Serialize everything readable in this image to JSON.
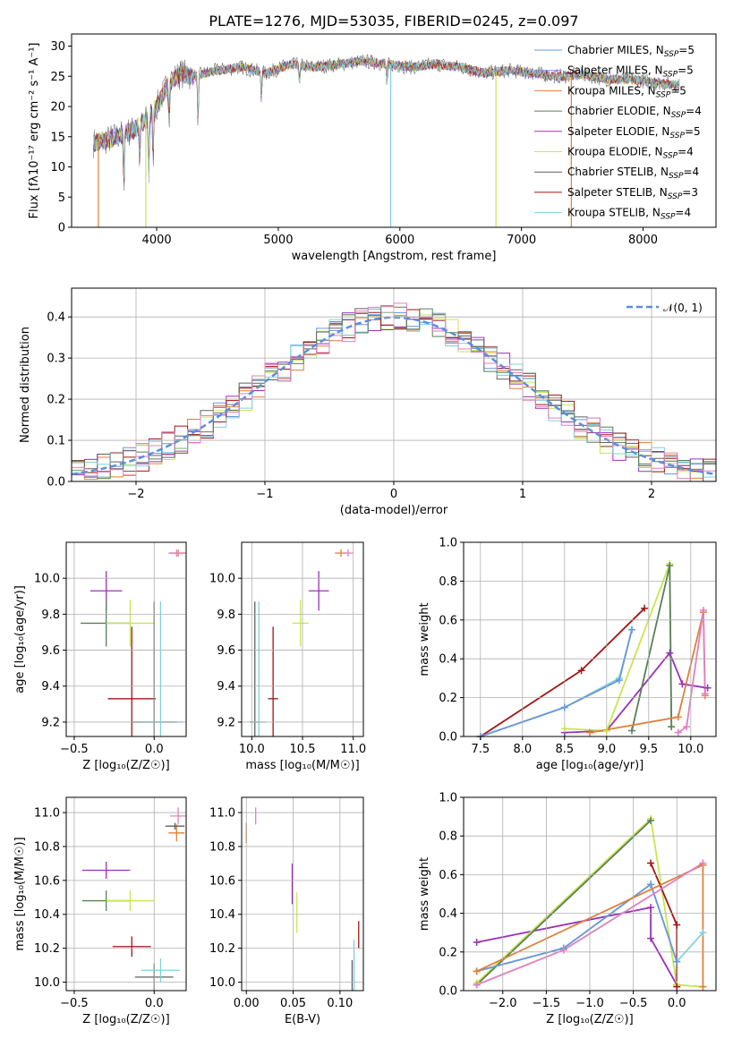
{
  "colors": {
    "chabrier_miles": "#6a97d9",
    "salpeter_miles": "#8a8af0",
    "kroupa_miles": "#e07f3a",
    "chabrier_elodie": "#5a7f5a",
    "salpeter_elodie": "#9b30b8",
    "kroupa_elodie": "#c8e650",
    "chabrier_stelib": "#606060",
    "salpeter_stelib": "#a01616",
    "kroupa_stelib": "#80d0e0",
    "pink": "#e080c0",
    "normal": "#5a8fdc"
  },
  "chart_data": [
    {
      "id": "spectrum",
      "type": "line",
      "title": "PLATE=1276, MJD=53035, FIBERID=0245, z=0.097",
      "xlabel": "wavelength [Angstrom, rest frame]",
      "ylabel": "Flux [fλ10⁻¹⁷ erg cm⁻² s⁻¹ A⁻¹]",
      "xlim": [
        3300,
        8600
      ],
      "ylim": [
        0,
        32
      ],
      "xticks": [
        "4000",
        "5000",
        "6000",
        "7000",
        "8000"
      ],
      "yticks": [
        "0",
        "5",
        "10",
        "15",
        "20",
        "25",
        "30"
      ],
      "legend_position": "top-right",
      "legend": [
        {
          "name": "Chabrier MILES, NSSP=5",
          "color": "#6a97d9"
        },
        {
          "name": "Salpeter MILES, NSSP=5",
          "color": "#8a8af0"
        },
        {
          "name": "Kroupa MILES, NSSP=5",
          "color": "#e07f3a"
        },
        {
          "name": "Chabrier ELODIE, NSSP=4",
          "color": "#5a7f5a"
        },
        {
          "name": "Salpeter ELODIE, NSSP=5",
          "color": "#9b30b8"
        },
        {
          "name": "Kroupa ELODIE, NSSP=4",
          "color": "#c8e650"
        },
        {
          "name": "Chabrier STELIB, NSSP=4",
          "color": "#606060"
        },
        {
          "name": "Salpeter STELIB, NSSP=3",
          "color": "#a01616"
        },
        {
          "name": "Kroupa STELIB, NSSP=4",
          "color": "#80d0e0"
        }
      ],
      "continuum_x": [
        3480,
        3600,
        3800,
        3900,
        4000,
        4100,
        4200,
        4300,
        4500,
        4700,
        4900,
        5100,
        5300,
        5500,
        5700,
        5900,
        6100,
        6300,
        6500,
        6700,
        6900,
        7100,
        7300,
        7500,
        7700,
        7900,
        8100,
        8300
      ],
      "continuum_y": [
        14,
        14.5,
        16,
        17.5,
        20,
        24,
        25.5,
        25,
        26,
        26.5,
        25.5,
        27,
        26.5,
        27,
        27.5,
        27,
        26.5,
        27,
        26.5,
        25.5,
        26,
        25.5,
        25,
        25.3,
        24.5,
        24.5,
        24,
        23.5
      ],
      "absorption_lines": [
        {
          "x": 3730,
          "depth": 8
        },
        {
          "x": 3860,
          "depth": 6
        },
        {
          "x": 3935,
          "depth": 10
        },
        {
          "x": 3970,
          "depth": 8
        },
        {
          "x": 4102,
          "depth": 6
        },
        {
          "x": 4340,
          "depth": 8
        },
        {
          "x": 4861,
          "depth": 4
        },
        {
          "x": 5175,
          "depth": 3
        },
        {
          "x": 5893,
          "depth": 3
        }
      ],
      "gap_drops": [
        {
          "x": 3520,
          "color": "#e07f3a"
        },
        {
          "x": 3910,
          "color": "#c8e650"
        },
        {
          "x": 5925,
          "color": "#80d0e0"
        },
        {
          "x": 6790,
          "color": "#c8e650"
        },
        {
          "x": 7410,
          "color": "#e07f3a"
        }
      ]
    },
    {
      "id": "residuals",
      "type": "bar",
      "xlabel": "(data-model)/error",
      "ylabel": "Normed distribution",
      "xlim": [
        -2.5,
        2.5
      ],
      "ylim": [
        0,
        0.47
      ],
      "xticks": [
        -2,
        -1,
        0,
        1,
        2
      ],
      "yticks": [
        "0.0",
        "0.1",
        "0.2",
        "0.3",
        "0.4"
      ],
      "grid": true,
      "legend": [
        {
          "name": "𝒩(0, 1)",
          "style": "dashed",
          "color": "#5a8fdc"
        }
      ],
      "legend_position": "top-right",
      "bin_width": 0.1
    },
    {
      "id": "age_vs_Z",
      "type": "scatter",
      "xlabel": "Z [log₁₀(Z/Z☉)]",
      "ylabel": "age  [log₁₀(age/yr)]",
      "xlim": [
        -0.55,
        0.2
      ],
      "ylim": [
        9.12,
        10.2
      ],
      "xticks": [
        "-0.5",
        "0.0"
      ],
      "yticks": [
        "9.2",
        "9.4",
        "9.6",
        "9.8",
        "10.0"
      ],
      "grid": true,
      "points": [
        {
          "x": -0.3,
          "y": 9.93,
          "xerr": 0.1,
          "yerr": 0.11,
          "color": "#9b30b8"
        },
        {
          "x": -0.3,
          "y": 9.75,
          "xerr": 0.16,
          "yerr": 0.13,
          "color": "#5a7f5a"
        },
        {
          "x": -0.15,
          "y": 9.75,
          "xerr": 0.15,
          "yerr": 0.13,
          "color": "#c8e650"
        },
        {
          "x": -0.14,
          "y": 9.33,
          "xerr": 0.15,
          "yerr": 0.4,
          "color": "#a01616"
        },
        {
          "x": 0.0,
          "y": 9.2,
          "xerr": 0.14,
          "yerr": 0.67,
          "color": "#606060"
        },
        {
          "x": 0.04,
          "y": 9.2,
          "xerr": 0.14,
          "yerr": 0.67,
          "color": "#80d0e0"
        },
        {
          "x": 0.15,
          "y": 10.14,
          "xerr": 0.05,
          "yerr": 0.02,
          "color": "#e07f3a"
        },
        {
          "x": 0.14,
          "y": 10.14,
          "xerr": 0.05,
          "yerr": 0.02,
          "color": "#e080c0"
        }
      ]
    },
    {
      "id": "age_vs_mass",
      "type": "scatter",
      "xlabel": "mass [log₁₀(M/M☉)]",
      "xlim": [
        9.9,
        11.1
      ],
      "ylim": [
        9.12,
        10.2
      ],
      "xticks": [
        "10.0",
        "10.5",
        "11.0"
      ],
      "yticks": [
        "9.2",
        "9.4",
        "9.6",
        "9.8",
        "10.0"
      ],
      "grid": true,
      "points": [
        {
          "x": 10.66,
          "y": 9.93,
          "xerr": 0.1,
          "yerr": 0.11,
          "color": "#9b30b8"
        },
        {
          "x": 10.48,
          "y": 9.75,
          "xerr": 0.08,
          "yerr": 0.13,
          "color": "#c8e650"
        },
        {
          "x": 10.21,
          "y": 9.33,
          "xerr": 0.05,
          "yerr": 0.4,
          "color": "#a01616"
        },
        {
          "x": 10.03,
          "y": 9.2,
          "xerr": 0.05,
          "yerr": 0.67,
          "color": "#606060"
        },
        {
          "x": 10.07,
          "y": 9.2,
          "xerr": 0.07,
          "yerr": 0.67,
          "color": "#80d0e0"
        },
        {
          "x": 10.88,
          "y": 10.14,
          "xerr": 0.06,
          "yerr": 0.02,
          "color": "#e07f3a"
        },
        {
          "x": 10.95,
          "y": 10.14,
          "xerr": 0.05,
          "yerr": 0.02,
          "color": "#e080c0"
        }
      ]
    },
    {
      "id": "weight_vs_age",
      "type": "line",
      "xlabel": "age  [log₁₀(age/yr)]",
      "ylabel": "mass weight",
      "xlim": [
        7.3,
        10.3
      ],
      "ylim": [
        0,
        1.0
      ],
      "xticks": [
        "7.5",
        "8.0",
        "8.5",
        "9.0",
        "9.5",
        "10.0"
      ],
      "yticks": [
        "0.0",
        "0.2",
        "0.4",
        "0.6",
        "0.8",
        "1.0"
      ],
      "grid": true,
      "series": [
        {
          "color": "#a01616",
          "x": [
            7.5,
            8.7,
            9.45
          ],
          "y": [
            0.0,
            0.34,
            0.66
          ]
        },
        {
          "color": "#80d0e0",
          "x": [
            7.5,
            8.5,
            9.15,
            9.3
          ],
          "y": [
            0.0,
            0.15,
            0.3,
            0.55
          ]
        },
        {
          "color": "#6a97d9",
          "x": [
            7.5,
            8.5,
            9.15,
            9.3
          ],
          "y": [
            0.0,
            0.15,
            0.29,
            0.55
          ]
        },
        {
          "color": "#9b30b8",
          "x": [
            8.5,
            9.0,
            9.75,
            9.9,
            10.2
          ],
          "y": [
            0.02,
            0.03,
            0.43,
            0.27,
            0.25
          ]
        },
        {
          "color": "#c8e650",
          "x": [
            8.5,
            9.0,
            9.75,
            9.77
          ],
          "y": [
            0.04,
            0.03,
            0.89,
            0.05
          ]
        },
        {
          "color": "#5a7f5a",
          "x": [
            9.3,
            9.75,
            9.77
          ],
          "y": [
            0.03,
            0.88,
            0.05
          ]
        },
        {
          "color": "#e07f3a",
          "x": [
            8.8,
            9.85,
            10.15,
            10.17
          ],
          "y": [
            0.02,
            0.1,
            0.64,
            0.21
          ]
        },
        {
          "color": "#e080c0",
          "x": [
            9.85,
            9.95,
            10.15,
            10.17
          ],
          "y": [
            0.02,
            0.05,
            0.65,
            0.22
          ]
        }
      ]
    },
    {
      "id": "mass_vs_Z",
      "type": "scatter",
      "xlabel": "Z [log₁₀(Z/Z☉)]",
      "ylabel": "mass [log₁₀(M/M☉)]",
      "xlim": [
        -0.55,
        0.2
      ],
      "ylim": [
        9.95,
        11.09
      ],
      "xticks": [
        "-0.5",
        "0.0"
      ],
      "yticks": [
        "10.0",
        "10.2",
        "10.4",
        "10.6",
        "10.8",
        "11.0"
      ],
      "grid": true,
      "points": [
        {
          "x": -0.3,
          "y": 10.66,
          "xerr": 0.15,
          "yerr": 0.05,
          "color": "#9b30b8"
        },
        {
          "x": -0.3,
          "y": 10.48,
          "xerr": 0.15,
          "yerr": 0.06,
          "color": "#5a7f5a"
        },
        {
          "x": -0.15,
          "y": 10.48,
          "xerr": 0.15,
          "yerr": 0.06,
          "color": "#c8e650"
        },
        {
          "x": -0.14,
          "y": 10.21,
          "xerr": 0.12,
          "yerr": 0.06,
          "color": "#a01616"
        },
        {
          "x": 0.0,
          "y": 10.03,
          "xerr": 0.12,
          "yerr": 0.08,
          "color": "#606060"
        },
        {
          "x": 0.04,
          "y": 10.07,
          "xerr": 0.12,
          "yerr": 0.07,
          "color": "#80d0e0"
        },
        {
          "x": 0.14,
          "y": 10.88,
          "xerr": 0.05,
          "yerr": 0.05,
          "color": "#e07f3a"
        },
        {
          "x": 0.15,
          "y": 10.98,
          "xerr": 0.05,
          "yerr": 0.05,
          "color": "#e080c0"
        },
        {
          "x": 0.13,
          "y": 10.92,
          "xerr": 0.06,
          "yerr": 0.02,
          "color": "#606060"
        }
      ]
    },
    {
      "id": "mass_vs_EBV",
      "type": "scatter",
      "xlabel": "E(B-V)",
      "xlim": [
        -0.005,
        0.125
      ],
      "ylim": [
        9.95,
        11.09
      ],
      "xticks": [
        "0.00",
        "0.05",
        "0.10"
      ],
      "yticks": [
        "10.0",
        "10.2",
        "10.4",
        "10.6",
        "10.8",
        "11.0"
      ],
      "grid": true,
      "points": [
        {
          "x": 0.0,
          "y": 10.88,
          "yerr": 0.06,
          "color": "#e07f3a"
        },
        {
          "x": 0.01,
          "y": 10.98,
          "yerr": 0.05,
          "color": "#e080c0"
        },
        {
          "x": 0.049,
          "y": 10.58,
          "yerr": 0.12,
          "color": "#9b30b8"
        },
        {
          "x": 0.054,
          "y": 10.41,
          "yerr": 0.12,
          "color": "#c8e650"
        },
        {
          "x": 0.113,
          "y": 10.03,
          "yerr": 0.1,
          "color": "#606060"
        },
        {
          "x": 0.115,
          "y": 10.1,
          "yerr": 0.15,
          "color": "#80d0e0"
        },
        {
          "x": 0.12,
          "y": 10.28,
          "yerr": 0.08,
          "color": "#a01616"
        }
      ]
    },
    {
      "id": "weight_vs_Z",
      "type": "line",
      "xlabel": "Z [log₁₀(Z/Z☉)]",
      "ylabel": "mass weight",
      "xlim": [
        -2.45,
        0.45
      ],
      "ylim": [
        0,
        1.0
      ],
      "xticks": [
        "-2.0",
        "-1.5",
        "-1.0",
        "-0.5",
        "0.0"
      ],
      "yticks": [
        "0.0",
        "0.2",
        "0.4",
        "0.6",
        "0.8",
        "1.0"
      ],
      "grid": true,
      "series": [
        {
          "color": "#9b30b8",
          "x": [
            -2.3,
            -0.3,
            -0.3,
            0.0
          ],
          "y": [
            0.25,
            0.43,
            0.27,
            0.03
          ]
        },
        {
          "color": "#c8e650",
          "x": [
            -2.3,
            -0.3,
            0.0,
            0.3
          ],
          "y": [
            0.04,
            0.89,
            0.03,
            0.02
          ]
        },
        {
          "color": "#5a7f5a",
          "x": [
            -2.3,
            -0.3
          ],
          "y": [
            0.03,
            0.88
          ]
        },
        {
          "color": "#a01616",
          "x": [
            -0.3,
            0.0,
            0.0
          ],
          "y": [
            0.66,
            0.34,
            0.02
          ]
        },
        {
          "color": "#80d0e0",
          "x": [
            -2.3,
            -1.3,
            -0.3,
            0.0,
            0.3
          ],
          "y": [
            0.1,
            0.22,
            0.55,
            0.15,
            0.3
          ]
        },
        {
          "color": "#6a97d9",
          "x": [
            -2.3,
            -1.3,
            -0.3,
            0.0
          ],
          "y": [
            0.1,
            0.22,
            0.55,
            0.15
          ]
        },
        {
          "color": "#e07f3a",
          "x": [
            -2.3,
            0.3,
            0.3
          ],
          "y": [
            0.1,
            0.65,
            0.02
          ]
        },
        {
          "color": "#e080c0",
          "x": [
            -2.3,
            -1.3,
            0.3
          ],
          "y": [
            0.03,
            0.21,
            0.66
          ]
        }
      ]
    }
  ]
}
